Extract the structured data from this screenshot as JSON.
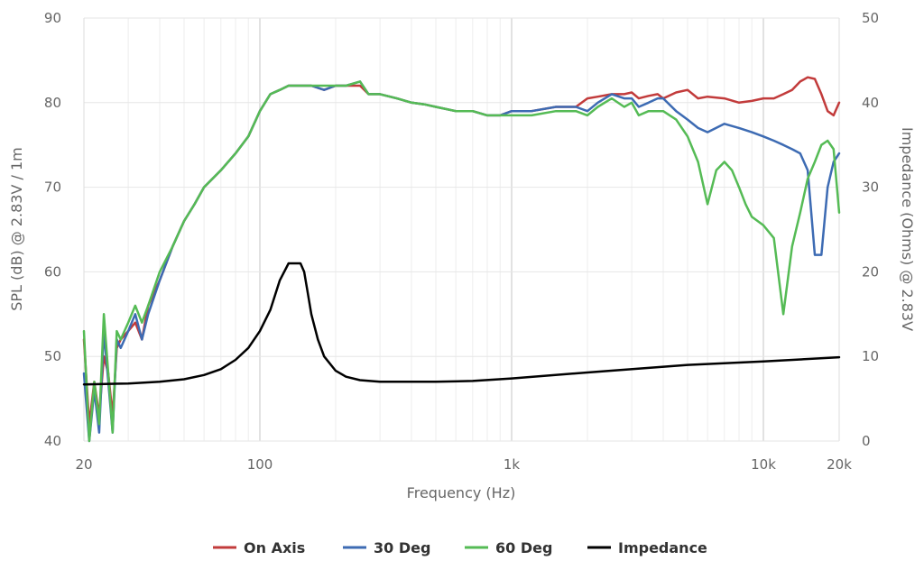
{
  "chart_data": {
    "type": "line",
    "xlabel": "Frequency (Hz)",
    "ylabel_left": "SPL (dB) @ 2.83V / 1m",
    "ylabel_right": "Impedance (Ohms) @ 2.83V",
    "x_scale": "log",
    "xlim": [
      20,
      20000
    ],
    "ylim_left": [
      40,
      90
    ],
    "ylim_right": [
      0,
      50
    ],
    "x_ticks": [
      {
        "value": 20,
        "label": "20"
      },
      {
        "value": 100,
        "label": "100"
      },
      {
        "value": 1000,
        "label": "1k"
      },
      {
        "value": 10000,
        "label": "10k"
      },
      {
        "value": 20000,
        "label": "20k"
      }
    ],
    "y_ticks_left": [
      "40",
      "50",
      "60",
      "70",
      "80",
      "90"
    ],
    "y_ticks_right": [
      "0",
      "10",
      "20",
      "30",
      "40",
      "50"
    ],
    "grid": true,
    "legend_position": "bottom",
    "series": [
      {
        "name": "On Axis",
        "axis": "left",
        "color": "#c23b3b",
        "x": [
          20,
          21,
          22,
          23,
          24,
          25,
          26,
          27,
          28,
          30,
          32,
          34,
          36,
          40,
          45,
          50,
          55,
          60,
          70,
          80,
          90,
          100,
          110,
          120,
          130,
          140,
          150,
          160,
          180,
          200,
          220,
          250,
          270,
          300,
          350,
          400,
          450,
          500,
          600,
          700,
          800,
          900,
          1000,
          1200,
          1500,
          1800,
          2000,
          2200,
          2500,
          2800,
          3000,
          3200,
          3500,
          3800,
          4000,
          4500,
          5000,
          5500,
          6000,
          7000,
          8000,
          9000,
          10000,
          11000,
          12000,
          13000,
          14000,
          15000,
          16000,
          17000,
          18000,
          19000,
          20000
        ],
        "y": [
          52,
          42,
          47,
          43,
          50,
          48,
          43,
          51,
          52,
          53,
          54,
          52,
          56,
          59,
          63,
          66,
          68,
          70,
          72,
          74,
          76,
          79,
          81,
          81.5,
          82,
          82,
          82,
          82,
          81.5,
          82,
          82,
          82,
          81,
          81,
          80.5,
          80,
          79.8,
          79.5,
          79,
          79,
          78.5,
          78.5,
          79,
          79,
          79.5,
          79.5,
          80.5,
          80.7,
          81,
          81,
          81.2,
          80.5,
          80.8,
          81,
          80.5,
          81.2,
          81.5,
          80.5,
          80.7,
          80.5,
          80,
          80.2,
          80.5,
          80.5,
          81,
          81.5,
          82.5,
          83,
          82.8,
          81,
          79,
          78.5,
          80
        ]
      },
      {
        "name": "30 Deg",
        "axis": "left",
        "color": "#3d6bb3",
        "x": [
          20,
          21,
          22,
          23,
          24,
          25,
          26,
          27,
          28,
          30,
          32,
          34,
          36,
          40,
          45,
          50,
          55,
          60,
          70,
          80,
          90,
          100,
          110,
          120,
          130,
          140,
          150,
          160,
          180,
          200,
          220,
          250,
          270,
          300,
          350,
          400,
          450,
          500,
          600,
          700,
          800,
          900,
          1000,
          1200,
          1500,
          1800,
          2000,
          2200,
          2500,
          2800,
          3000,
          3200,
          3500,
          3800,
          4000,
          4500,
          5000,
          5500,
          6000,
          7000,
          8000,
          9000,
          10000,
          11000,
          12000,
          13000,
          14000,
          15000,
          16000,
          17000,
          18000,
          19000,
          20000
        ],
        "y": [
          48,
          40,
          46,
          41,
          53,
          47,
          41,
          52,
          51,
          53,
          55,
          52,
          55,
          59,
          63,
          66,
          68,
          70,
          72,
          74,
          76,
          79,
          81,
          81.5,
          82,
          82,
          82,
          82,
          81.5,
          82,
          82,
          82.5,
          81,
          81,
          80.5,
          80,
          79.8,
          79.5,
          79,
          79,
          78.5,
          78.5,
          79,
          79,
          79.5,
          79.5,
          79,
          80,
          81,
          80.5,
          80.5,
          79.5,
          80,
          80.5,
          80.5,
          79,
          78,
          77,
          76.5,
          77.5,
          77,
          76.5,
          76,
          75.5,
          75,
          74.5,
          74,
          72,
          62,
          62,
          70,
          73,
          74
        ]
      },
      {
        "name": "60 Deg",
        "axis": "left",
        "color": "#55bb55",
        "x": [
          20,
          21,
          22,
          23,
          24,
          25,
          26,
          27,
          28,
          30,
          32,
          34,
          36,
          40,
          45,
          50,
          55,
          60,
          70,
          80,
          90,
          100,
          110,
          120,
          130,
          140,
          150,
          160,
          180,
          200,
          220,
          250,
          270,
          300,
          350,
          400,
          450,
          500,
          600,
          700,
          800,
          900,
          1000,
          1200,
          1500,
          1800,
          2000,
          2200,
          2500,
          2800,
          3000,
          3200,
          3500,
          3800,
          4000,
          4500,
          5000,
          5500,
          6000,
          6500,
          7000,
          7500,
          8000,
          8500,
          9000,
          10000,
          11000,
          12000,
          13000,
          14000,
          15000,
          16000,
          17000,
          18000,
          19000,
          20000
        ],
        "y": [
          53,
          40,
          47,
          42,
          55,
          48,
          41,
          53,
          52,
          54,
          56,
          54,
          56,
          60,
          63,
          66,
          68,
          70,
          72,
          74,
          76,
          79,
          81,
          81.5,
          82,
          82,
          82,
          82,
          82,
          82,
          82,
          82.5,
          81,
          81,
          80.5,
          80,
          79.8,
          79.5,
          79,
          79,
          78.5,
          78.5,
          78.5,
          78.5,
          79,
          79,
          78.5,
          79.5,
          80.5,
          79.5,
          80,
          78.5,
          79,
          79,
          79,
          78,
          76,
          73,
          68,
          72,
          73,
          72,
          70,
          68,
          66.5,
          65.5,
          64,
          55,
          63,
          67,
          71,
          73,
          75,
          75.5,
          74.5,
          67
        ]
      },
      {
        "name": "Impedance",
        "axis": "right",
        "color": "#000000",
        "x": [
          20,
          30,
          40,
          50,
          60,
          70,
          80,
          90,
          100,
          110,
          120,
          130,
          140,
          145,
          150,
          155,
          160,
          170,
          180,
          200,
          220,
          250,
          300,
          400,
          500,
          700,
          1000,
          2000,
          5000,
          10000,
          20000
        ],
        "y": [
          6.7,
          6.8,
          7,
          7.3,
          7.8,
          8.5,
          9.6,
          11,
          13,
          15.5,
          19,
          21,
          21,
          21,
          20,
          17.5,
          15,
          12,
          10,
          8.3,
          7.6,
          7.2,
          7,
          7,
          7,
          7.1,
          7.4,
          8.1,
          9,
          9.4,
          9.9
        ]
      }
    ]
  }
}
